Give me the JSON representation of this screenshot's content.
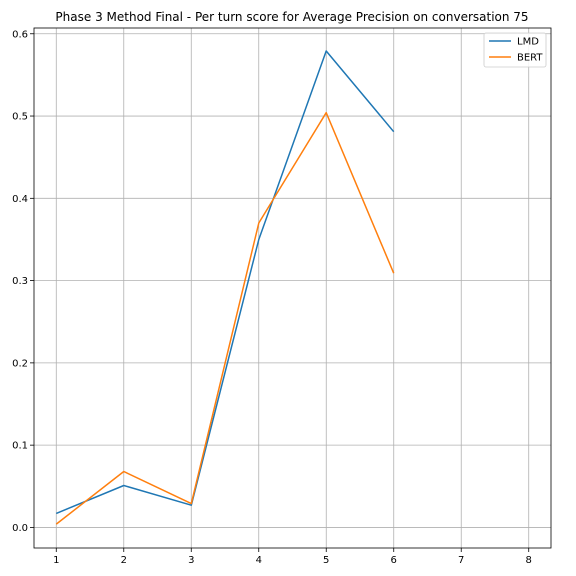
{
  "chart_data": {
    "type": "line",
    "title": "Phase 3 Method Final - Per turn score for Average Precision on conversation 75",
    "xlabel": "",
    "ylabel": "",
    "xlim": [
      0.67,
      8.33
    ],
    "ylim": [
      -0.025,
      0.607
    ],
    "x_ticks": [
      1,
      2,
      3,
      4,
      5,
      6,
      7,
      8
    ],
    "y_ticks": [
      0.0,
      0.1,
      0.2,
      0.3,
      0.4,
      0.5,
      0.6
    ],
    "y_tick_labels": [
      "0.0",
      "0.1",
      "0.2",
      "0.3",
      "0.4",
      "0.5",
      "0.6"
    ],
    "grid": true,
    "legend_position": "top-right",
    "series": [
      {
        "name": "LMD",
        "color": "#1f77b4",
        "x": [
          1,
          2,
          3,
          4,
          5,
          6
        ],
        "y": [
          0.017,
          0.051,
          0.027,
          0.35,
          0.579,
          0.481
        ]
      },
      {
        "name": "BERT",
        "color": "#ff7f0e",
        "x": [
          1,
          2,
          3,
          4,
          5,
          6
        ],
        "y": [
          0.004,
          0.068,
          0.029,
          0.37,
          0.504,
          0.309
        ]
      }
    ]
  }
}
